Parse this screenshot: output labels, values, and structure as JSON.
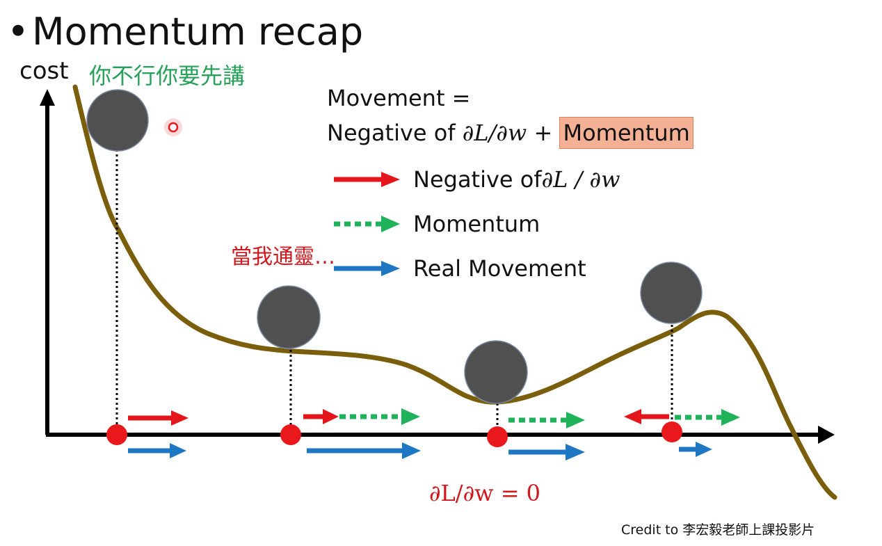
{
  "slide": {
    "title": "Momentum recap",
    "bullet": "•",
    "y_axis_label": "cost",
    "green_note": "你不行你要先講",
    "red_note": "當我通靈…",
    "formula": {
      "line1": "Movement =",
      "line2_prefix": "Negative of ",
      "line2_math": "∂L/∂w",
      "line2_plus": " + ",
      "line2_highlight": "Momentum"
    },
    "legend": [
      {
        "label_prefix": "Negative of ",
        "label_math": "∂L / ∂w",
        "color": "#e3161c",
        "style": "solid"
      },
      {
        "label_prefix": "Momentum",
        "label_math": "",
        "color": "#1fb25a",
        "style": "dotted"
      },
      {
        "label_prefix": "Real Movement",
        "label_math": "",
        "color": "#1f77c4",
        "style": "solid"
      }
    ],
    "zero_gradient_label": "∂L/∂w = 0",
    "credit": "Credit to 李宏毅老師上課投影片",
    "colors": {
      "curve": "#7a5e0c",
      "ball": "#505050",
      "point": "#e8181c",
      "gradient_arrow": "#e3161c",
      "momentum_arrow": "#1fb25a",
      "real_arrow": "#1f77c4",
      "highlight_bg": "#f4b196"
    }
  }
}
